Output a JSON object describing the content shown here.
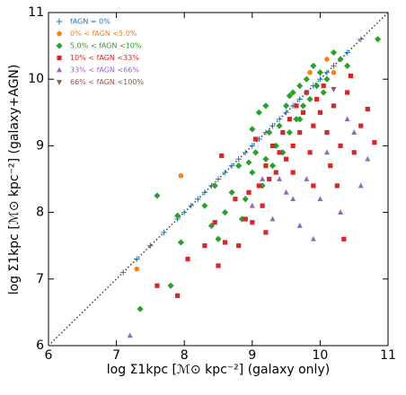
{
  "chart_data": {
    "type": "scatter",
    "xlabel": "log Σ1kpc [ℳ⊙ kpc⁻²]  (galaxy only)",
    "ylabel": "log Σ1kpc [ℳ⊙ kpc⁻²]  (galaxy+AGN)",
    "xlim": [
      6,
      11
    ],
    "ylim": [
      6,
      11
    ],
    "xticks": [
      6,
      7,
      8,
      9,
      10,
      11
    ],
    "yticks": [
      6,
      7,
      8,
      9,
      10,
      11
    ],
    "diagonal": true,
    "legend": "upper left",
    "series": [
      {
        "name": "fAGN = 0%",
        "color": "#1f77b4",
        "marker": "plus",
        "x": [
          7.1,
          7.3,
          7.5,
          7.7,
          7.9,
          8.0,
          8.1,
          8.2,
          8.3,
          8.4,
          8.5,
          8.6,
          8.7,
          8.8,
          8.9,
          9.0,
          9.1,
          9.2,
          9.3,
          9.4,
          9.5,
          9.6,
          9.7,
          9.8,
          9.9,
          10.0,
          10.1,
          10.2,
          10.3,
          10.4,
          10.6
        ],
        "y": [
          7.1,
          7.3,
          7.5,
          7.7,
          7.9,
          8.0,
          8.1,
          8.2,
          8.3,
          8.4,
          8.5,
          8.6,
          8.7,
          8.8,
          8.9,
          9.0,
          9.1,
          9.2,
          9.3,
          9.4,
          9.5,
          9.6,
          9.7,
          9.8,
          9.9,
          10.0,
          10.1,
          10.2,
          10.3,
          10.4,
          10.6
        ]
      },
      {
        "name": "0% < fAGN <5.0%",
        "color": "#ff7f0e",
        "marker": "circle",
        "x": [
          7.3,
          7.95,
          10.1,
          10.2,
          9.85
        ],
        "y": [
          7.15,
          8.55,
          10.3,
          10.1,
          10.1
        ]
      },
      {
        "name": "5.0% < fAGN <10%",
        "color": "#2ca02c",
        "marker": "diamond",
        "x": [
          7.6,
          7.9,
          7.95,
          7.8,
          7.35,
          8.5,
          8.6,
          8.7,
          8.8,
          8.85,
          8.9,
          9.0,
          9.05,
          9.1,
          9.15,
          9.2,
          9.25,
          9.3,
          9.35,
          9.4,
          9.45,
          9.5,
          9.55,
          9.6,
          9.65,
          9.7,
          9.75,
          9.8,
          9.85,
          9.9,
          9.95,
          10.0,
          10.05,
          10.1,
          10.2,
          10.3,
          10.4,
          10.85,
          8.3,
          8.45,
          9.2,
          9.55,
          9.0,
          8.95,
          9.7,
          8.4
        ],
        "y": [
          8.25,
          7.95,
          7.55,
          6.9,
          6.55,
          7.6,
          8.0,
          8.3,
          8.7,
          7.9,
          8.2,
          8.6,
          8.9,
          9.5,
          8.4,
          8.8,
          9.2,
          8.7,
          9.0,
          9.3,
          8.9,
          9.6,
          9.2,
          9.8,
          9.4,
          9.9,
          9.6,
          10.0,
          9.7,
          10.2,
          9.9,
          10.1,
          9.8,
          10.0,
          10.4,
          10.3,
          10.2,
          10.6,
          8.1,
          8.4,
          9.6,
          9.75,
          9.25,
          8.75,
          9.4,
          7.8
        ]
      },
      {
        "name": "10% < fAGN <33%",
        "color": "#d62728",
        "marker": "square",
        "x": [
          7.6,
          7.9,
          8.3,
          8.45,
          8.5,
          8.6,
          8.8,
          8.9,
          8.95,
          9.0,
          9.1,
          9.15,
          9.2,
          9.25,
          9.3,
          9.35,
          9.4,
          9.45,
          9.5,
          9.55,
          9.6,
          9.65,
          9.7,
          9.75,
          9.8,
          9.85,
          9.9,
          9.95,
          10.0,
          10.05,
          10.1,
          10.15,
          10.2,
          10.25,
          10.3,
          10.4,
          10.5,
          10.6,
          10.7,
          10.8,
          10.35,
          9.9,
          9.6,
          9.2,
          8.75,
          9.05,
          8.55,
          10.45,
          8.05
        ],
        "y": [
          6.9,
          6.75,
          7.5,
          7.85,
          7.2,
          7.55,
          7.5,
          7.9,
          8.3,
          7.85,
          8.4,
          8.1,
          8.7,
          8.5,
          9.0,
          8.6,
          8.9,
          9.2,
          8.8,
          9.4,
          9.0,
          9.6,
          9.2,
          9.5,
          9.8,
          8.9,
          9.3,
          9.7,
          9.5,
          9.9,
          9.2,
          8.7,
          9.6,
          8.4,
          9.0,
          9.8,
          8.9,
          9.3,
          9.55,
          9.05,
          7.6,
          8.4,
          8.6,
          7.7,
          8.2,
          9.1,
          8.85,
          10.05,
          7.3
        ]
      },
      {
        "name": "33% < fAGN <66%",
        "color": "#9467bd",
        "marker": "tri-up",
        "x": [
          7.2,
          9.0,
          9.3,
          9.5,
          9.7,
          9.8,
          10.0,
          10.3,
          10.5,
          10.6,
          9.15,
          9.6,
          9.9,
          10.1,
          10.4,
          9.4,
          10.7
        ],
        "y": [
          6.15,
          8.1,
          7.9,
          8.3,
          7.8,
          8.5,
          8.2,
          8.0,
          9.2,
          8.4,
          8.5,
          8.2,
          7.6,
          8.9,
          9.4,
          8.5,
          8.8
        ]
      },
      {
        "name": "66% < fAGN <100%",
        "color": "#8c564b",
        "marker": "tri-down",
        "x": [
          10.2
        ],
        "y": [
          9.85
        ]
      }
    ]
  }
}
